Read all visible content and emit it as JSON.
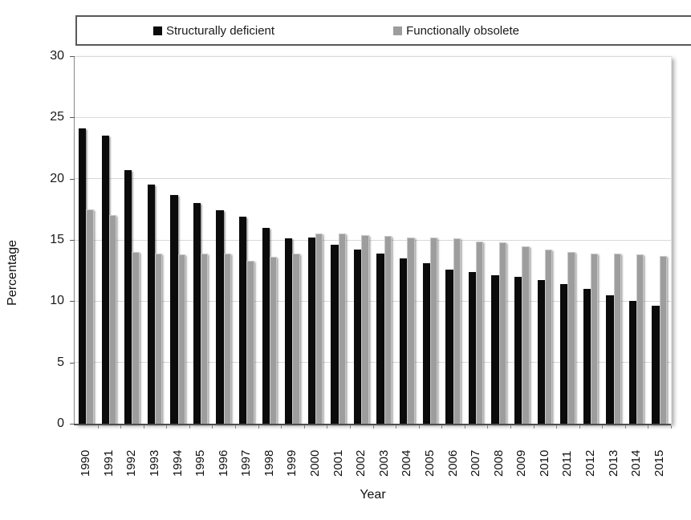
{
  "chart_data": {
    "type": "bar",
    "title": "",
    "xlabel": "Year",
    "ylabel": "Percentage",
    "ylim": [
      0,
      30
    ],
    "y_ticks": [
      0,
      5,
      10,
      15,
      20,
      25,
      30
    ],
    "grid": "horizontal",
    "legend_position": "top",
    "categories": [
      "1990",
      "1991",
      "1992",
      "1993",
      "1994",
      "1995",
      "1996",
      "1997",
      "1998",
      "1999",
      "2000",
      "2001",
      "2002",
      "2003",
      "2004",
      "2005",
      "2006",
      "2007",
      "2008",
      "2009",
      "2010",
      "2011",
      "2012",
      "2013",
      "2014",
      "2015"
    ],
    "series": [
      {
        "name": "Structurally deficient",
        "color": "#0b0b0b",
        "values": [
          24.1,
          23.5,
          20.7,
          19.5,
          18.7,
          18.0,
          17.4,
          16.9,
          16.0,
          15.1,
          15.2,
          14.6,
          14.2,
          13.9,
          13.5,
          13.1,
          12.6,
          12.4,
          12.1,
          12.0,
          11.7,
          11.4,
          11.0,
          10.5,
          10.0,
          9.6
        ]
      },
      {
        "name": "Functionally obsolete",
        "color": "#9d9d9d",
        "values": [
          17.5,
          17.0,
          14.0,
          13.9,
          13.8,
          13.9,
          13.9,
          13.3,
          13.6,
          13.9,
          15.5,
          15.5,
          15.4,
          15.3,
          15.2,
          15.2,
          15.1,
          14.9,
          14.8,
          14.5,
          14.2,
          14.0,
          13.9,
          13.9,
          13.8,
          13.7
        ]
      }
    ]
  }
}
